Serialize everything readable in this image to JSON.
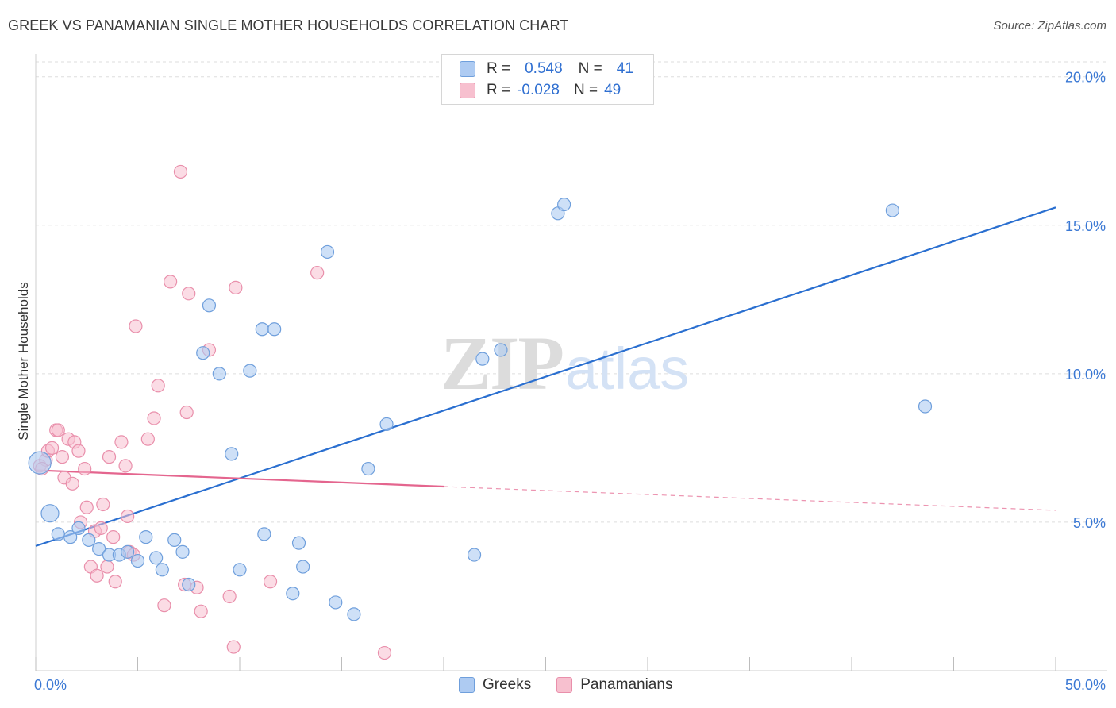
{
  "header": {
    "title": "GREEK VS PANAMANIAN SINGLE MOTHER HOUSEHOLDS CORRELATION CHART",
    "source": "Source: ZipAtlas.com"
  },
  "legend": {
    "rows": [
      {
        "r_label": "R =",
        "r_value": "0.548",
        "n_label": "N =",
        "n_value": "41"
      },
      {
        "r_label": "R =",
        "r_value": "-0.028",
        "n_label": "N =",
        "n_value": "49"
      }
    ],
    "series_names": [
      "Greeks",
      "Panamanians"
    ]
  },
  "colors": {
    "greeks_fill": "#aecbf2",
    "greeks_stroke": "#6f9fdc",
    "greeks_line": "#2a6fd0",
    "panamanians_fill": "#f7c0cf",
    "panamanians_stroke": "#e98fab",
    "panamanians_line": "#e4658e",
    "axis_text": "#3a78d4",
    "grid": "#dedede",
    "watermark": "#e7e7e7"
  },
  "watermark": {
    "left": "ZIP",
    "right": "atlas"
  },
  "chart_data": {
    "type": "scatter",
    "title": "GREEK VS PANAMANIAN SINGLE MOTHER HOUSEHOLDS CORRELATION CHART",
    "xlabel": "",
    "ylabel": "Single Mother Households",
    "xlim": [
      0,
      50
    ],
    "ylim": [
      0,
      20.5
    ],
    "x_tick_labels": [
      "0.0%",
      "50.0%"
    ],
    "y_ticks": [
      5,
      10,
      15,
      20
    ],
    "y_tick_labels": [
      "5.0%",
      "10.0%",
      "15.0%",
      "20.0%"
    ],
    "grid": true,
    "series": [
      {
        "name": "Greeks",
        "r": 0.548,
        "n": 41,
        "points": [
          [
            0.2,
            7.0
          ],
          [
            0.7,
            5.3
          ],
          [
            1.1,
            4.6
          ],
          [
            1.7,
            4.5
          ],
          [
            2.1,
            4.8
          ],
          [
            2.6,
            4.4
          ],
          [
            3.1,
            4.1
          ],
          [
            3.6,
            3.9
          ],
          [
            4.1,
            3.9
          ],
          [
            4.5,
            4.0
          ],
          [
            5.0,
            3.7
          ],
          [
            5.4,
            4.5
          ],
          [
            5.9,
            3.8
          ],
          [
            6.2,
            3.4
          ],
          [
            6.8,
            4.4
          ],
          [
            7.2,
            4.0
          ],
          [
            7.5,
            2.9
          ],
          [
            8.2,
            10.7
          ],
          [
            8.5,
            12.3
          ],
          [
            9.0,
            10.0
          ],
          [
            9.6,
            7.3
          ],
          [
            10.0,
            3.4
          ],
          [
            10.5,
            10.1
          ],
          [
            11.1,
            11.5
          ],
          [
            11.2,
            4.6
          ],
          [
            11.7,
            11.5
          ],
          [
            12.6,
            2.6
          ],
          [
            12.9,
            4.3
          ],
          [
            13.1,
            3.5
          ],
          [
            14.3,
            14.1
          ],
          [
            14.7,
            2.3
          ],
          [
            15.6,
            1.9
          ],
          [
            16.3,
            6.8
          ],
          [
            17.2,
            8.3
          ],
          [
            21.5,
            3.9
          ],
          [
            21.9,
            10.5
          ],
          [
            22.8,
            10.8
          ],
          [
            25.6,
            15.4
          ],
          [
            25.9,
            15.7
          ],
          [
            42.0,
            15.5
          ],
          [
            43.6,
            8.9
          ]
        ],
        "trend": {
          "x": [
            0,
            50
          ],
          "y": [
            4.2,
            15.6
          ]
        }
      },
      {
        "name": "Panamanians",
        "r": -0.028,
        "n": 49,
        "points": [
          [
            0.2,
            6.9
          ],
          [
            0.5,
            7.1
          ],
          [
            0.6,
            7.4
          ],
          [
            0.8,
            7.5
          ],
          [
            1.0,
            8.1
          ],
          [
            1.1,
            8.1
          ],
          [
            1.3,
            7.2
          ],
          [
            1.4,
            6.5
          ],
          [
            1.6,
            7.8
          ],
          [
            1.8,
            6.3
          ],
          [
            1.9,
            7.7
          ],
          [
            2.1,
            7.4
          ],
          [
            2.2,
            5.0
          ],
          [
            2.4,
            6.8
          ],
          [
            2.5,
            5.5
          ],
          [
            2.7,
            3.5
          ],
          [
            2.9,
            4.7
          ],
          [
            3.0,
            3.2
          ],
          [
            3.2,
            4.8
          ],
          [
            3.3,
            5.6
          ],
          [
            3.5,
            3.5
          ],
          [
            3.6,
            7.2
          ],
          [
            3.8,
            4.5
          ],
          [
            3.9,
            3.0
          ],
          [
            4.2,
            7.7
          ],
          [
            4.4,
            6.9
          ],
          [
            4.5,
            5.2
          ],
          [
            4.6,
            4.0
          ],
          [
            4.8,
            3.9
          ],
          [
            4.9,
            11.6
          ],
          [
            5.5,
            7.8
          ],
          [
            5.8,
            8.5
          ],
          [
            6.0,
            9.6
          ],
          [
            6.3,
            2.2
          ],
          [
            6.6,
            13.1
          ],
          [
            7.1,
            16.8
          ],
          [
            7.3,
            2.9
          ],
          [
            7.4,
            8.7
          ],
          [
            7.5,
            12.7
          ],
          [
            7.9,
            2.8
          ],
          [
            8.1,
            2.0
          ],
          [
            8.5,
            10.8
          ],
          [
            9.5,
            2.5
          ],
          [
            9.7,
            0.8
          ],
          [
            9.8,
            12.9
          ],
          [
            11.5,
            3.0
          ],
          [
            13.8,
            13.4
          ],
          [
            17.1,
            0.6
          ],
          [
            0.3,
            6.8
          ]
        ],
        "trend_solid": {
          "x": [
            0,
            20
          ],
          "y": [
            6.75,
            6.2
          ]
        },
        "trend_dashed": {
          "x": [
            20,
            50
          ],
          "y": [
            6.2,
            5.4
          ]
        }
      }
    ]
  }
}
